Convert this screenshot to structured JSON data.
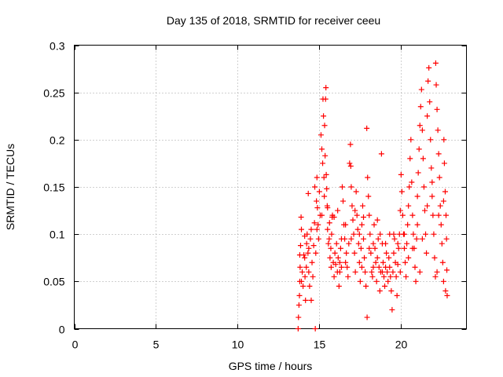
{
  "chart_data": {
    "type": "scatter",
    "title": "Day 135 of 2018, SRMTID for receiver ceeu",
    "xlabel": "GPS time / hours",
    "ylabel": "SRMTID / TECUs",
    "xlim": [
      0,
      24
    ],
    "ylim": [
      0,
      0.3
    ],
    "x_ticks": [
      0,
      5,
      10,
      15,
      20
    ],
    "x_tick_labels": [
      "0",
      "5",
      "10",
      "15",
      "20"
    ],
    "y_ticks": [
      0,
      0.05,
      0.1,
      0.15,
      0.2,
      0.25,
      0.3
    ],
    "y_tick_labels": [
      "0",
      "0.05",
      "0.1",
      "0.15",
      "0.2",
      "0.25",
      "0.3"
    ],
    "grid": true,
    "marker": "plus",
    "series": [
      {
        "name": "SRMTID",
        "color": "#ff0000",
        "points": [
          [
            13.7,
            0.0
          ],
          [
            14.75,
            0.0
          ],
          [
            13.72,
            0.012
          ],
          [
            13.75,
            0.025
          ],
          [
            13.78,
            0.035
          ],
          [
            13.8,
            0.05
          ],
          [
            13.82,
            0.065
          ],
          [
            13.85,
            0.088
          ],
          [
            13.88,
            0.118
          ],
          [
            13.9,
            0.105
          ],
          [
            13.95,
            0.06
          ],
          [
            14.0,
            0.045
          ],
          [
            14.05,
            0.078
          ],
          [
            14.1,
            0.098
          ],
          [
            14.12,
            0.055
          ],
          [
            14.15,
            0.03
          ],
          [
            14.2,
            0.065
          ],
          [
            14.22,
            0.09
          ],
          [
            14.25,
            0.1
          ],
          [
            14.3,
            0.08
          ],
          [
            14.32,
            0.143
          ],
          [
            14.35,
            0.06
          ],
          [
            14.4,
            0.045
          ],
          [
            14.45,
            0.095
          ],
          [
            14.5,
            0.105
          ],
          [
            14.55,
            0.07
          ],
          [
            14.6,
            0.055
          ],
          [
            14.65,
            0.088
          ],
          [
            14.7,
            0.112
          ],
          [
            14.72,
            0.15
          ],
          [
            14.78,
            0.08
          ],
          [
            14.82,
            0.135
          ],
          [
            14.85,
            0.16
          ],
          [
            14.88,
            0.128
          ],
          [
            14.92,
            0.11
          ],
          [
            14.95,
            0.095
          ],
          [
            15.0,
            0.145
          ],
          [
            15.05,
            0.12
          ],
          [
            15.1,
            0.205
          ],
          [
            15.15,
            0.19
          ],
          [
            15.2,
            0.175
          ],
          [
            15.22,
            0.243
          ],
          [
            15.25,
            0.225
          ],
          [
            15.28,
            0.16
          ],
          [
            15.3,
            0.14
          ],
          [
            15.32,
            0.215
          ],
          [
            15.35,
            0.183
          ],
          [
            15.38,
            0.243
          ],
          [
            15.4,
            0.255
          ],
          [
            15.42,
            0.163
          ],
          [
            15.45,
            0.148
          ],
          [
            15.48,
            0.13
          ],
          [
            15.5,
            0.105
          ],
          [
            15.55,
            0.09
          ],
          [
            15.6,
            0.095
          ],
          [
            15.65,
            0.075
          ],
          [
            15.7,
            0.085
          ],
          [
            15.72,
            0.065
          ],
          [
            15.75,
            0.1
          ],
          [
            15.78,
            0.118
          ],
          [
            15.8,
            0.12
          ],
          [
            15.85,
            0.07
          ],
          [
            15.9,
            0.055
          ],
          [
            15.95,
            0.08
          ],
          [
            16.0,
            0.068
          ],
          [
            16.05,
            0.09
          ],
          [
            16.1,
            0.06
          ],
          [
            16.15,
            0.075
          ],
          [
            16.2,
            0.045
          ],
          [
            16.25,
            0.06
          ],
          [
            16.3,
            0.085
          ],
          [
            16.35,
            0.065
          ],
          [
            16.4,
            0.15
          ],
          [
            16.45,
            0.135
          ],
          [
            16.5,
            0.11
          ],
          [
            16.55,
            0.095
          ],
          [
            16.6,
            0.07
          ],
          [
            16.65,
            0.08
          ],
          [
            16.7,
            0.065
          ],
          [
            16.75,
            0.055
          ],
          [
            16.8,
            0.09
          ],
          [
            16.85,
            0.175
          ],
          [
            16.9,
            0.195
          ],
          [
            16.92,
            0.172
          ],
          [
            16.95,
            0.15
          ],
          [
            17.0,
            0.13
          ],
          [
            17.05,
            0.115
          ],
          [
            17.1,
            0.1
          ],
          [
            17.15,
            0.08
          ],
          [
            17.2,
            0.06
          ],
          [
            17.25,
            0.145
          ],
          [
            17.3,
            0.12
          ],
          [
            17.35,
            0.105
          ],
          [
            17.4,
            0.09
          ],
          [
            17.45,
            0.07
          ],
          [
            17.5,
            0.05
          ],
          [
            17.55,
            0.085
          ],
          [
            17.6,
            0.11
          ],
          [
            17.65,
            0.13
          ],
          [
            17.7,
            0.095
          ],
          [
            17.75,
            0.075
          ],
          [
            17.8,
            0.06
          ],
          [
            17.85,
            0.045
          ],
          [
            17.9,
            0.212
          ],
          [
            17.92,
            0.012
          ],
          [
            17.95,
            0.16
          ],
          [
            18.0,
            0.14
          ],
          [
            18.05,
            0.12
          ],
          [
            18.1,
            0.1
          ],
          [
            18.15,
            0.08
          ],
          [
            18.2,
            0.06
          ],
          [
            18.25,
            0.055
          ],
          [
            18.3,
            0.09
          ],
          [
            18.35,
            0.11
          ],
          [
            18.4,
            0.085
          ],
          [
            18.45,
            0.07
          ],
          [
            18.5,
            0.05
          ],
          [
            18.55,
            0.075
          ],
          [
            18.6,
            0.095
          ],
          [
            18.65,
            0.065
          ],
          [
            18.7,
            0.04
          ],
          [
            18.75,
            0.06
          ],
          [
            18.8,
            0.185
          ],
          [
            18.85,
            0.09
          ],
          [
            18.9,
            0.07
          ],
          [
            18.95,
            0.055
          ],
          [
            19.0,
            0.045
          ],
          [
            19.05,
            0.065
          ],
          [
            19.1,
            0.08
          ],
          [
            19.15,
            0.06
          ],
          [
            19.2,
            0.05
          ],
          [
            19.25,
            0.075
          ],
          [
            19.3,
            0.065
          ],
          [
            19.35,
            0.055
          ],
          [
            19.4,
            0.04
          ],
          [
            19.45,
            0.02
          ],
          [
            19.5,
            0.06
          ],
          [
            19.55,
            0.08
          ],
          [
            19.6,
            0.095
          ],
          [
            19.65,
            0.07
          ],
          [
            19.7,
            0.055
          ],
          [
            19.75,
            0.035
          ],
          [
            19.8,
            0.068
          ],
          [
            19.85,
            0.085
          ],
          [
            19.9,
            0.1
          ],
          [
            19.95,
            0.125
          ],
          [
            20.0,
            0.163
          ],
          [
            20.05,
            0.145
          ],
          [
            20.1,
            0.12
          ],
          [
            20.15,
            0.1
          ],
          [
            20.2,
            0.085
          ],
          [
            20.25,
            0.07
          ],
          [
            20.3,
            0.055
          ],
          [
            20.35,
            0.09
          ],
          [
            20.4,
            0.11
          ],
          [
            20.45,
            0.13
          ],
          [
            20.5,
            0.15
          ],
          [
            20.55,
            0.18
          ],
          [
            20.6,
            0.2
          ],
          [
            20.65,
            0.155
          ],
          [
            20.7,
            0.12
          ],
          [
            20.75,
            0.1
          ],
          [
            20.8,
            0.085
          ],
          [
            20.85,
            0.065
          ],
          [
            20.9,
            0.05
          ],
          [
            20.95,
            0.095
          ],
          [
            21.0,
            0.14
          ],
          [
            21.05,
            0.165
          ],
          [
            21.1,
            0.19
          ],
          [
            21.15,
            0.215
          ],
          [
            21.2,
            0.235
          ],
          [
            21.25,
            0.253
          ],
          [
            21.3,
            0.21
          ],
          [
            21.35,
            0.18
          ],
          [
            21.4,
            0.15
          ],
          [
            21.45,
            0.125
          ],
          [
            21.5,
            0.1
          ],
          [
            21.55,
            0.08
          ],
          [
            21.6,
            0.225
          ],
          [
            21.65,
            0.262
          ],
          [
            21.7,
            0.276
          ],
          [
            21.75,
            0.24
          ],
          [
            21.8,
            0.2
          ],
          [
            21.85,
            0.17
          ],
          [
            21.9,
            0.14
          ],
          [
            21.95,
            0.12
          ],
          [
            22.0,
            0.1
          ],
          [
            22.05,
            0.075
          ],
          [
            22.1,
            0.055
          ],
          [
            22.12,
            0.281
          ],
          [
            22.15,
            0.258
          ],
          [
            22.2,
            0.232
          ],
          [
            22.25,
            0.21
          ],
          [
            22.3,
            0.185
          ],
          [
            22.35,
            0.16
          ],
          [
            22.4,
            0.13
          ],
          [
            22.45,
            0.11
          ],
          [
            22.5,
            0.09
          ],
          [
            22.55,
            0.07
          ],
          [
            22.6,
            0.05
          ],
          [
            22.62,
            0.2
          ],
          [
            22.65,
            0.175
          ],
          [
            22.7,
            0.145
          ],
          [
            22.72,
            0.04
          ],
          [
            22.75,
            0.12
          ],
          [
            22.78,
            0.095
          ],
          [
            22.8,
            0.062
          ],
          [
            22.82,
            0.035
          ],
          [
            15.5,
            0.128
          ],
          [
            15.62,
            0.112
          ],
          [
            15.9,
            0.118
          ],
          [
            16.12,
            0.125
          ],
          [
            16.35,
            0.095
          ],
          [
            16.6,
            0.11
          ],
          [
            16.95,
            0.095
          ],
          [
            17.18,
            0.125
          ],
          [
            17.45,
            0.1
          ],
          [
            17.7,
            0.118
          ],
          [
            18.05,
            0.085
          ],
          [
            18.3,
            0.065
          ],
          [
            18.55,
            0.115
          ],
          [
            18.72,
            0.1
          ],
          [
            19.05,
            0.09
          ],
          [
            19.3,
            0.1
          ],
          [
            19.55,
            0.1
          ],
          [
            19.8,
            0.09
          ],
          [
            20.2,
            0.1
          ],
          [
            20.45,
            0.075
          ],
          [
            20.7,
            0.085
          ],
          [
            21.0,
            0.11
          ],
          [
            21.3,
            0.095
          ],
          [
            21.6,
            0.13
          ],
          [
            21.9,
            0.155
          ],
          [
            22.3,
            0.12
          ],
          [
            22.6,
            0.135
          ],
          [
            14.5,
            0.03
          ],
          [
            14.35,
            0.085
          ],
          [
            14.1,
            0.075
          ],
          [
            13.9,
            0.05
          ],
          [
            13.8,
            0.078
          ],
          [
            14.85,
            0.105
          ],
          [
            15.15,
            0.12
          ],
          [
            16.25,
            0.07
          ],
          [
            17.6,
            0.065
          ],
          [
            18.85,
            0.06
          ],
          [
            19.95,
            0.06
          ],
          [
            21.15,
            0.06
          ],
          [
            22.2,
            0.06
          ]
        ]
      }
    ]
  }
}
